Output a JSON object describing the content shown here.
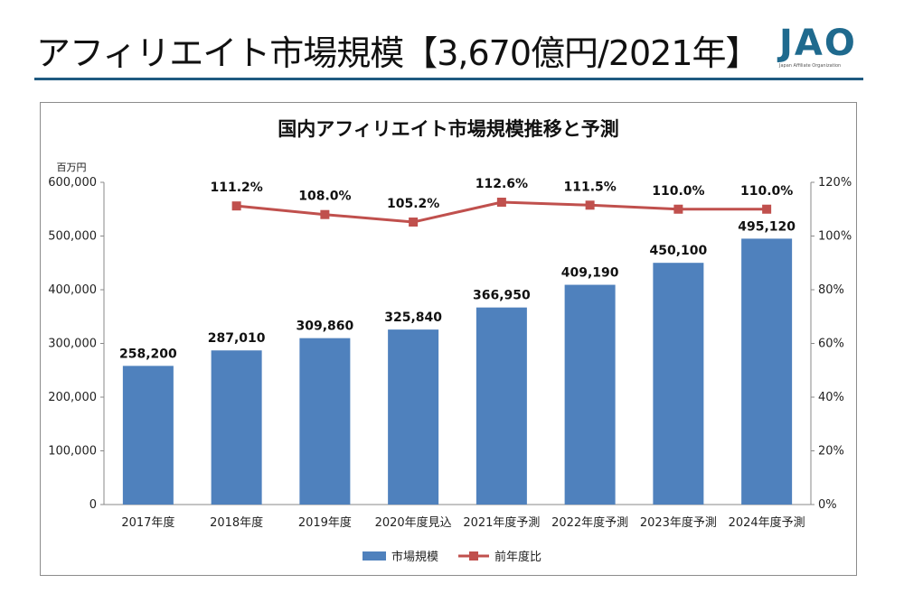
{
  "header": {
    "title": "アフィリエイト市場規模【3,670億円/2021年】",
    "logo_text": "JAO",
    "logo_subtext": "Japan Affiliate Organization"
  },
  "colors": {
    "bar": "#4f81bd",
    "line": "#c0504d",
    "rule": "#1f5a80",
    "logo": "#1f6a8e"
  },
  "chart_data": {
    "type": "bar",
    "title": "国内アフィリエイト市場規模推移と予測",
    "y_unit_label": "百万円",
    "categories": [
      "2017年度",
      "2018年度",
      "2019年度",
      "2020年度見込",
      "2021年度予測",
      "2022年度予測",
      "2023年度予測",
      "2024年度予測"
    ],
    "series": [
      {
        "name": "市場規模",
        "type": "bar",
        "axis": "left",
        "values": [
          258200,
          287010,
          309860,
          325840,
          366950,
          409190,
          450100,
          495120
        ],
        "labels": [
          "258,200",
          "287,010",
          "309,860",
          "325,840",
          "366,950",
          "409,190",
          "450,100",
          "495,120"
        ]
      },
      {
        "name": "前年度比",
        "type": "line",
        "axis": "right",
        "values": [
          null,
          111.2,
          108.0,
          105.2,
          112.6,
          111.5,
          110.0,
          110.0
        ],
        "labels": [
          "",
          "111.2%",
          "108.0%",
          "105.2%",
          "112.6%",
          "111.5%",
          "110.0%",
          "110.0%"
        ]
      }
    ],
    "ylim": [
      0,
      600000
    ],
    "y2lim": [
      0,
      120
    ],
    "y_ticks": [
      "0",
      "100,000",
      "200,000",
      "300,000",
      "400,000",
      "500,000",
      "600,000"
    ],
    "y2_ticks": [
      "0%",
      "20%",
      "40%",
      "60%",
      "80%",
      "100%",
      "120%"
    ],
    "grid": false,
    "legend_position": "bottom"
  }
}
